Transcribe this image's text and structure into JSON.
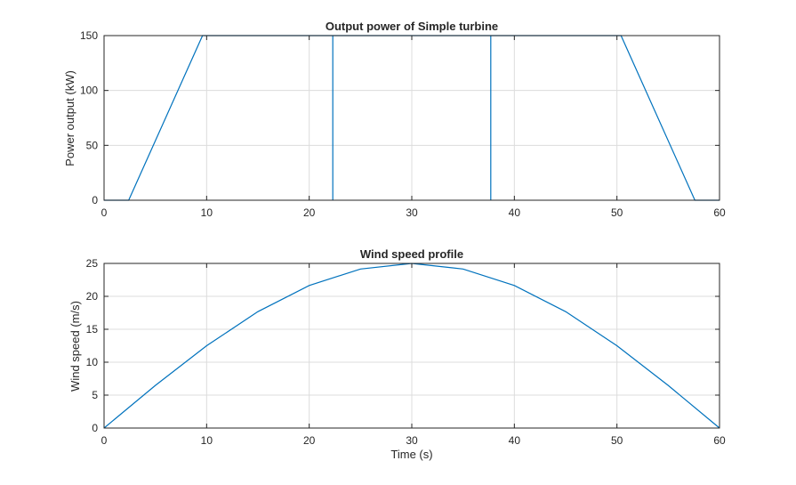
{
  "chart_data": [
    {
      "type": "line",
      "title": "Output power of Simple turbine",
      "xlabel": "",
      "ylabel": "Power output (kW)",
      "xlim": [
        0,
        60
      ],
      "ylim": [
        0,
        150
      ],
      "xticks": [
        0,
        10,
        20,
        30,
        40,
        50,
        60
      ],
      "yticks": [
        0,
        50,
        100,
        150
      ],
      "grid": true,
      "color": "#0072BD",
      "series": [
        {
          "x": [
            0,
            2.4,
            9.6,
            22.3,
            22.3,
            22.3,
            37.7,
            37.7,
            37.7,
            50.4,
            57.6,
            60
          ],
          "y": [
            0,
            0,
            150,
            150,
            0,
            150,
            150,
            0,
            150,
            150,
            0,
            0
          ]
        }
      ]
    },
    {
      "type": "line",
      "title": "Wind speed profile",
      "xlabel": "Time (s)",
      "ylabel": "Wind speed (m/s)",
      "xlim": [
        0,
        60
      ],
      "ylim": [
        0,
        25
      ],
      "xticks": [
        0,
        10,
        20,
        30,
        40,
        50,
        60
      ],
      "yticks": [
        0,
        5,
        10,
        15,
        20,
        25
      ],
      "grid": true,
      "color": "#0072BD",
      "series": [
        {
          "x": [
            0,
            5,
            10,
            15,
            20,
            25,
            30,
            35,
            40,
            45,
            50,
            55,
            60
          ],
          "y": [
            0,
            6.47,
            12.5,
            17.68,
            21.65,
            24.15,
            25,
            24.15,
            21.65,
            17.68,
            12.5,
            6.47,
            0
          ]
        }
      ]
    }
  ]
}
